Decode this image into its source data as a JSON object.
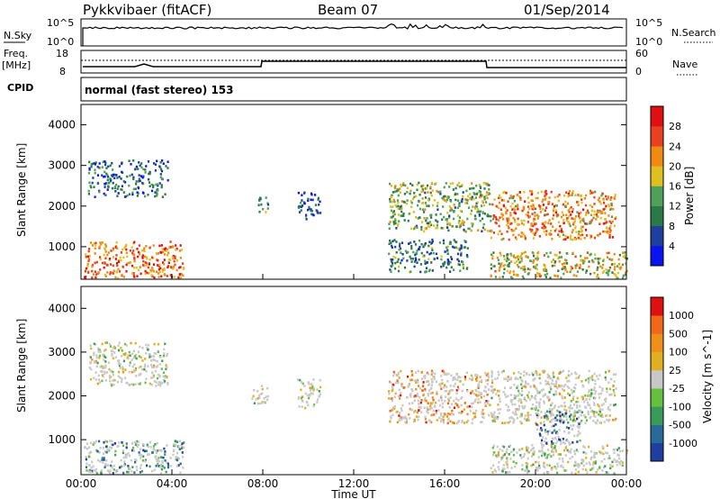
{
  "header": {
    "title": "Pykkvibaer (fitACF)",
    "beam": "Beam 07",
    "date": "01/Sep/2014"
  },
  "top_panels": {
    "nsky_label": "N.Sky",
    "nsky_ticks": [
      "10^5",
      "10^0"
    ],
    "nsearch_label": "N.Search",
    "nsearch_ticks": [
      "10^5",
      "10^0"
    ],
    "freq_label_line1": "Freq.",
    "freq_label_line2": "[MHz]",
    "freq_ticks": [
      "18",
      "8"
    ],
    "nave_label": "Nave",
    "nave_ticks": [
      "60",
      "0"
    ],
    "cpid_label": "CPID",
    "cpid_text": "normal (fast stereo) 153"
  },
  "colors": {
    "power": [
      "#0a14f0",
      "#1e3fa0",
      "#2a7a48",
      "#4fa05a",
      "#e0c020",
      "#f08a10",
      "#e84020",
      "#e01010"
    ],
    "velocity": [
      "#1e3fa0",
      "#2a6a9a",
      "#3a9a58",
      "#66c040",
      "#c8c8c8",
      "#e0b020",
      "#f0901a",
      "#f06818",
      "#e01010"
    ]
  },
  "chart_data": [
    {
      "type": "heatmap",
      "title": "",
      "xlabel": "Time UT",
      "ylabel": "Slant Range [km]",
      "xlim": [
        0,
        24
      ],
      "ylim": [
        200,
        4500
      ],
      "x_ticks": [
        "00:00",
        "04:00",
        "08:00",
        "12:00",
        "16:00",
        "20:00",
        "00:00"
      ],
      "y_ticks": [
        "1000",
        "2000",
        "3000",
        "4000"
      ],
      "colorbar_label": "Power [dB]",
      "colorbar_ticks": [
        "4",
        "8",
        "12",
        "16",
        "20",
        "24",
        "28"
      ],
      "scatter_regions": [
        {
          "t": [
            0.3,
            3.8
          ],
          "r": [
            2250,
            3150
          ],
          "level": 0.25
        },
        {
          "t": [
            0.1,
            4.5
          ],
          "r": [
            250,
            1150
          ],
          "level": 0.75
        },
        {
          "t": [
            7.5,
            8.2
          ],
          "r": [
            1850,
            2250
          ],
          "level": 0.3
        },
        {
          "t": [
            9.5,
            10.5
          ],
          "r": [
            1700,
            2400
          ],
          "level": 0.2
        },
        {
          "t": [
            13.5,
            18
          ],
          "r": [
            1400,
            2600
          ],
          "level": 0.45
        },
        {
          "t": [
            13.5,
            17
          ],
          "r": [
            400,
            1200
          ],
          "level": 0.3
        },
        {
          "t": [
            18,
            23.5
          ],
          "r": [
            1200,
            2400
          ],
          "level": 0.7
        },
        {
          "t": [
            18,
            24
          ],
          "r": [
            250,
            900
          ],
          "level": 0.55
        }
      ]
    },
    {
      "type": "heatmap",
      "title": "",
      "xlabel": "Time UT",
      "ylabel": "Slant Range [km]",
      "xlim": [
        0,
        24
      ],
      "ylim": [
        200,
        4500
      ],
      "x_ticks": [
        "00:00",
        "04:00",
        "08:00",
        "12:00",
        "16:00",
        "20:00",
        "00:00"
      ],
      "y_ticks": [
        "1000",
        "2000",
        "3000",
        "4000"
      ],
      "colorbar_label": "Velocity [m s^-1]",
      "colorbar_ticks": [
        "1000",
        "500",
        "100",
        "25",
        "-25",
        "-100",
        "-500",
        "-1000"
      ],
      "scatter_regions": [
        {
          "t": [
            0.3,
            3.8
          ],
          "r": [
            2250,
            3250
          ],
          "level": 0.5
        },
        {
          "t": [
            0.1,
            4.5
          ],
          "r": [
            250,
            1000
          ],
          "level": 0.2
        },
        {
          "t": [
            7.5,
            8.2
          ],
          "r": [
            1850,
            2250
          ],
          "level": 0.5
        },
        {
          "t": [
            9.5,
            10.5
          ],
          "r": [
            1700,
            2400
          ],
          "level": 0.5
        },
        {
          "t": [
            13.5,
            18
          ],
          "r": [
            1400,
            2600
          ],
          "level": 0.7
        },
        {
          "t": [
            18,
            23.5
          ],
          "r": [
            1400,
            2600
          ],
          "level": 0.5
        },
        {
          "t": [
            20,
            22
          ],
          "r": [
            900,
            1700
          ],
          "level": 0.15
        },
        {
          "t": [
            18,
            24
          ],
          "r": [
            250,
            900
          ],
          "level": 0.45
        }
      ]
    }
  ]
}
